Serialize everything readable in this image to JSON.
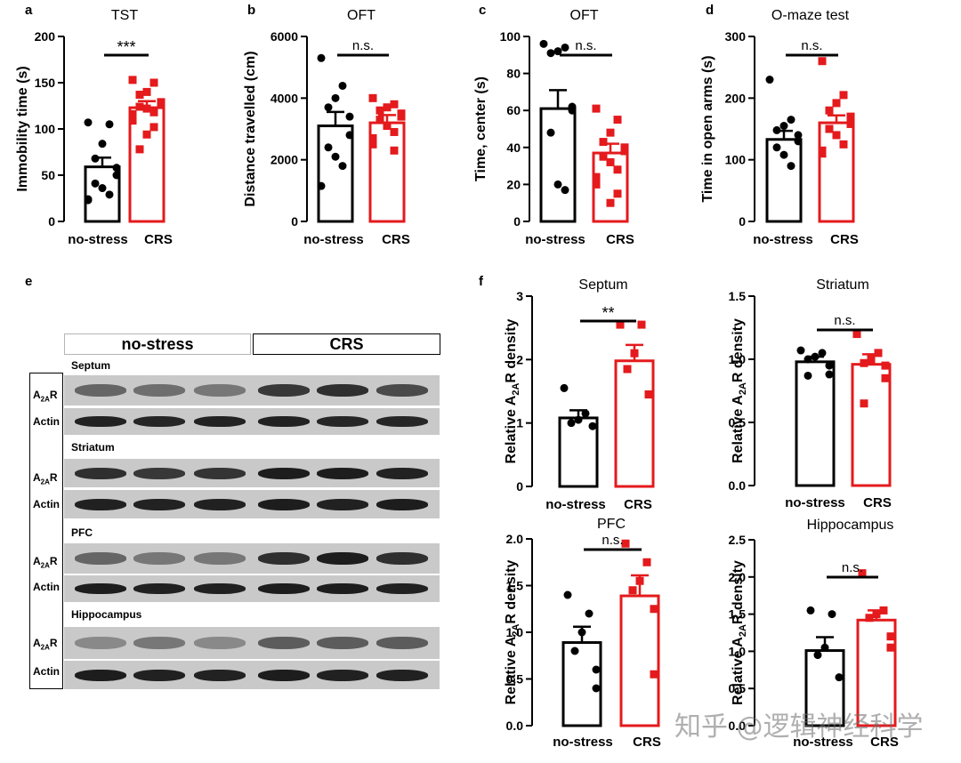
{
  "colors": {
    "control": "#000000",
    "stress": "#e41a1c"
  },
  "panel_letters": [
    "a",
    "b",
    "c",
    "d",
    "e",
    "f"
  ],
  "panel_e": {
    "header_left": "no-stress",
    "header_right": "CRS",
    "regions": [
      "Septum",
      "Striatum",
      "PFC",
      "Hippocampus"
    ],
    "row_label_target_main": "A",
    "row_label_target_sub": "2A",
    "row_label_target_suffix": "R",
    "row_label_loading": "Actin"
  },
  "watermark": "知乎 @逻辑神经科学",
  "chart_data": [
    {
      "id": "a",
      "type": "bar",
      "title": "TST",
      "ylabel": "Immobility time (s)",
      "categories": [
        "no-stress",
        "CRS"
      ],
      "ylim": [
        0,
        200
      ],
      "yticks": [
        0,
        50,
        100,
        150,
        200
      ],
      "ytick_labels": [
        "0",
        "50",
        "100",
        "150",
        "200"
      ],
      "values": [
        59,
        123
      ],
      "sem": [
        10,
        7
      ],
      "significance": "***",
      "points": [
        [
          107,
          105,
          84,
          68,
          58,
          50,
          41,
          36,
          29,
          24,
          23
        ],
        [
          153,
          150,
          140,
          137,
          129,
          127,
          124,
          122,
          118,
          116,
          109,
          102,
          94,
          78
        ]
      ]
    },
    {
      "id": "b",
      "type": "bar",
      "title": "OFT",
      "ylabel": "Distance travelled (cm)",
      "categories": [
        "no-stress",
        "CRS"
      ],
      "ylim": [
        0,
        6000
      ],
      "yticks": [
        0,
        2000,
        4000,
        6000
      ],
      "ytick_labels": [
        "0",
        "2000",
        "4000",
        "6000"
      ],
      "values": [
        3100,
        3200
      ],
      "sem": [
        450,
        250
      ],
      "significance": "n.s.",
      "points": [
        [
          5300,
          4400,
          4000,
          3700,
          3400,
          2800,
          2400,
          2100,
          1800,
          1150
        ],
        [
          4000,
          3800,
          3700,
          3600,
          3500,
          3400,
          3300,
          3100,
          2900,
          2700,
          2500,
          2300
        ]
      ]
    },
    {
      "id": "c",
      "type": "bar",
      "title": "OFT",
      "ylabel": "Time, center (s)",
      "categories": [
        "no-stress",
        "CRS"
      ],
      "ylim": [
        0,
        100
      ],
      "yticks": [
        0,
        20,
        40,
        60,
        80,
        100
      ],
      "ytick_labels": [
        "0",
        "20",
        "40",
        "60",
        "80",
        "100"
      ],
      "values": [
        61,
        37
      ],
      "sem": [
        10,
        5
      ],
      "significance": "n.s.",
      "points": [
        [
          96,
          94,
          92,
          91,
          62,
          60,
          48,
          20,
          17
        ],
        [
          61,
          55,
          48,
          43,
          40,
          38,
          35,
          32,
          28,
          24,
          20,
          15,
          10
        ]
      ]
    },
    {
      "id": "d",
      "type": "bar",
      "title": "O-maze test",
      "ylabel": "Time in open arms (s)",
      "categories": [
        "no-stress",
        "CRS"
      ],
      "ylim": [
        0,
        300
      ],
      "yticks": [
        0,
        100,
        200,
        300
      ],
      "ytick_labels": [
        "0",
        "100",
        "200",
        "300"
      ],
      "values": [
        133,
        160
      ],
      "sem": [
        14,
        12
      ],
      "significance": "n.s.",
      "points": [
        [
          230,
          165,
          155,
          148,
          140,
          130,
          120,
          108,
          90
        ],
        [
          260,
          205,
          192,
          180,
          170,
          158,
          150,
          140,
          125,
          115,
          110
        ]
      ]
    },
    {
      "id": "f-septum",
      "type": "bar",
      "title": "Septum",
      "ylabel_main": "Relative A",
      "ylabel_sub": "2A",
      "ylabel_suffix": "R density",
      "categories": [
        "no-stress",
        "CRS"
      ],
      "ylim": [
        0,
        3
      ],
      "yticks": [
        0,
        1,
        2,
        3
      ],
      "ytick_labels": [
        "0",
        "1",
        "2",
        "3"
      ],
      "values": [
        1.08,
        1.98
      ],
      "sem": [
        0.12,
        0.25
      ],
      "significance": "**",
      "points": [
        [
          1.55,
          1.15,
          1.05,
          1.0,
          0.95
        ],
        [
          2.55,
          2.55,
          2.1,
          1.85,
          1.45,
          1.45
        ]
      ]
    },
    {
      "id": "f-striatum",
      "type": "bar",
      "title": "Striatum",
      "ylabel_main": "Relative A",
      "ylabel_sub": "2A",
      "ylabel_suffix": "R density",
      "categories": [
        "no-stress",
        "CRS"
      ],
      "ylim": [
        0,
        1.5
      ],
      "yticks": [
        0,
        0.5,
        1.0,
        1.5
      ],
      "ytick_labels": [
        "0.0",
        "0.5",
        "1.0",
        "1.5"
      ],
      "values": [
        0.98,
        0.96
      ],
      "sem": [
        0.04,
        0.08
      ],
      "significance": "n.s.",
      "points": [
        [
          1.07,
          1.05,
          1.02,
          1.0,
          0.95,
          0.88,
          0.87
        ],
        [
          1.2,
          1.05,
          1.0,
          0.97,
          0.95,
          0.85,
          0.65
        ]
      ]
    },
    {
      "id": "f-pfc",
      "type": "bar",
      "title": "PFC",
      "ylabel_main": "Relative A",
      "ylabel_sub": "2A",
      "ylabel_suffix": "R density",
      "categories": [
        "no-stress",
        "CRS"
      ],
      "ylim": [
        0,
        2.0
      ],
      "yticks": [
        0,
        0.5,
        1.0,
        1.5,
        2.0
      ],
      "ytick_labels": [
        "0.0",
        "0.5",
        "1.0",
        "1.5",
        "2.0"
      ],
      "values": [
        0.89,
        1.39
      ],
      "sem": [
        0.17,
        0.22
      ],
      "significance": "n.s.",
      "points": [
        [
          1.4,
          1.2,
          1.0,
          0.8,
          0.6,
          0.4
        ],
        [
          1.95,
          1.75,
          1.55,
          1.45,
          1.25,
          0.55
        ]
      ]
    },
    {
      "id": "f-hippocampus",
      "type": "bar",
      "title": "Hippocampus",
      "ylabel_main": "Relative A",
      "ylabel_sub": "2A",
      "ylabel_suffix": "R density",
      "categories": [
        "no-stress",
        "CRS"
      ],
      "ylim": [
        0,
        2.5
      ],
      "yticks": [
        0,
        0.5,
        1.0,
        1.5,
        2.0,
        2.5
      ],
      "ytick_labels": [
        "0.0",
        "0.5",
        "1.0",
        "1.5",
        "2.0",
        "2.5"
      ],
      "values": [
        1.01,
        1.42
      ],
      "sem": [
        0.18,
        0.13
      ],
      "significance": "n.s.",
      "points": [
        [
          1.55,
          1.5,
          1.05,
          0.95,
          0.65
        ],
        [
          2.05,
          1.55,
          1.5,
          1.45,
          1.2,
          1.05
        ]
      ]
    }
  ]
}
